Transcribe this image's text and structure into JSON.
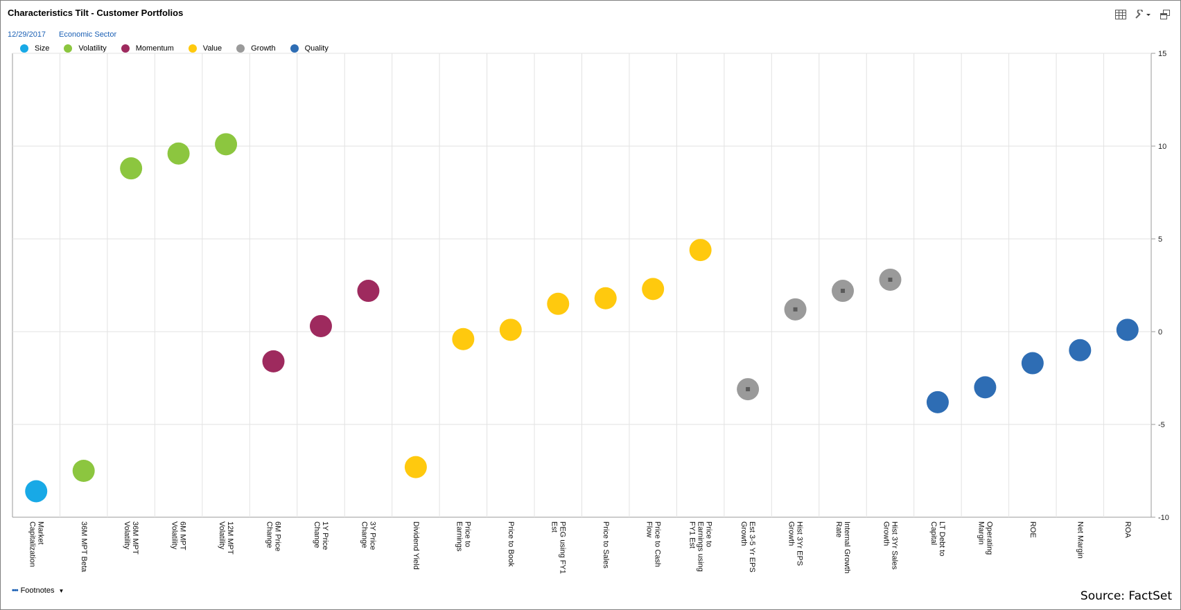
{
  "header": {
    "title": "Characteristics Tilt - Customer Portfolios",
    "date": "12/29/2017",
    "grouping": "Economic Sector"
  },
  "toolbar": {
    "icons": [
      "table-icon",
      "wrench-icon",
      "dropdown-caret-icon",
      "restore-window-icon"
    ]
  },
  "colors": {
    "Size": "#18a9e6",
    "Volatility": "#8cc63f",
    "Momentum": "#9e2a5e",
    "Value": "#ffc90e",
    "Growth": "#9a9a9a",
    "Quality": "#2e6db4"
  },
  "chart_data": {
    "type": "scatter",
    "title": "Characteristics Tilt - Customer Portfolios",
    "ylim": [
      -10,
      15
    ],
    "yticks": [
      15,
      10,
      5,
      0,
      -5,
      -10
    ],
    "grid": true,
    "legend_position": "top-left",
    "legend": [
      "Size",
      "Volatility",
      "Momentum",
      "Value",
      "Growth",
      "Quality"
    ],
    "categories": [
      "Market Capitalization",
      "36M MPT Beta",
      "36M MPT Volatility",
      "6M MPT Volatility",
      "12M MPT Volatility",
      "6M Price Change",
      "1Y Price Change",
      "3Y Price Change",
      "Dividend Yield",
      "Price to Earnings",
      "Price to Book",
      "PEG using FY1 Est",
      "Price to Sales",
      "Price to Cash Flow",
      "Price to Earnings using FY1 Est",
      "Est 3-5 Yr EPS Growth",
      "Hist 3Yr EPS Growth",
      "Internal Growth Rate",
      "Hist 3Yr Sales Growth",
      "LT Debt to Capital",
      "Operating Margin",
      "ROE",
      "Net Margin",
      "ROA"
    ],
    "category_label_lines": [
      [
        "Market",
        "Capitalization"
      ],
      [
        "36M MPT Beta"
      ],
      [
        "36M MPT",
        "Volatility"
      ],
      [
        "6M MPT",
        "Volatility"
      ],
      [
        "12M MPT",
        "Volatility"
      ],
      [
        "6M Price",
        "Change"
      ],
      [
        "1Y Price",
        "Change"
      ],
      [
        "3Y Price",
        "Change"
      ],
      [
        "Dividend Yield"
      ],
      [
        "Price to",
        "Earnings"
      ],
      [
        "Price to Book"
      ],
      [
        "PEG using FY1",
        "Est"
      ],
      [
        "Price to Sales"
      ],
      [
        "Price to Cash",
        "Flow"
      ],
      [
        "Price to",
        "Earnings using",
        "FY1 Est"
      ],
      [
        "Est 3-5 Yr EPS",
        "Growth"
      ],
      [
        "Hist 3Yr EPS",
        "Growth"
      ],
      [
        "Internal Growth",
        "Rate"
      ],
      [
        "Hist 3Yr Sales",
        "Growth"
      ],
      [
        "LT Debt to",
        "Capital"
      ],
      [
        "Operating",
        "Margin"
      ],
      [
        "ROE"
      ],
      [
        "Net Margin"
      ],
      [
        "ROA"
      ]
    ],
    "groups": [
      "Size",
      "Volatility",
      "Volatility",
      "Volatility",
      "Volatility",
      "Momentum",
      "Momentum",
      "Momentum",
      "Value",
      "Value",
      "Value",
      "Value",
      "Value",
      "Value",
      "Value",
      "Growth",
      "Growth",
      "Growth",
      "Growth",
      "Quality",
      "Quality",
      "Quality",
      "Quality",
      "Quality"
    ],
    "values": [
      -8.6,
      -7.5,
      8.8,
      9.6,
      10.1,
      -1.6,
      0.3,
      2.2,
      -7.3,
      -0.4,
      0.1,
      1.5,
      1.8,
      2.3,
      4.4,
      -3.1,
      1.2,
      2.2,
      2.8,
      -3.8,
      -3.0,
      -1.7,
      -1.0,
      0.1
    ]
  },
  "footer": {
    "footnotes_label": "Footnotes",
    "source": "Source: FactSet"
  }
}
